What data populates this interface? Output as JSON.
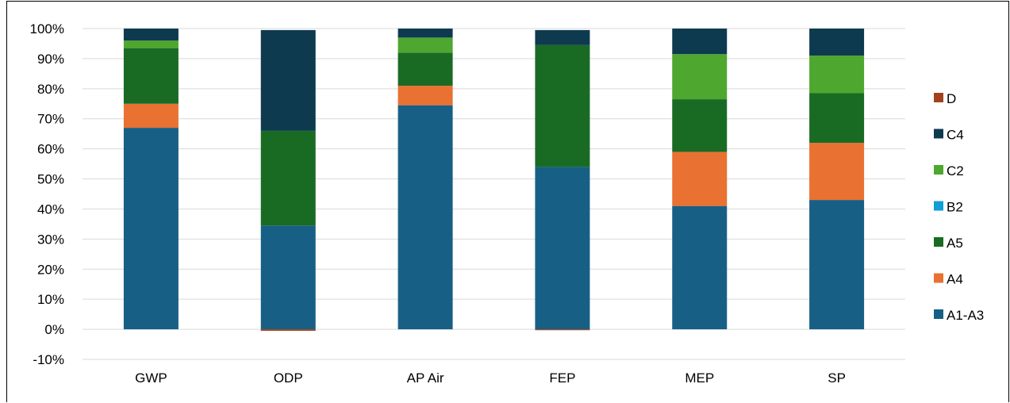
{
  "chart_data": {
    "type": "bar",
    "stacked": true,
    "title": "",
    "xlabel": "",
    "ylabel": "",
    "ylim": [
      -0.1,
      1.0
    ],
    "yticks": [
      "-10%",
      "0%",
      "10%",
      "20%",
      "30%",
      "40%",
      "50%",
      "60%",
      "70%",
      "80%",
      "90%",
      "100%"
    ],
    "grid": true,
    "legend_position": "right",
    "categories": [
      "GWP",
      "ODP",
      "AP Air",
      "FEP",
      "MEP",
      "SP"
    ],
    "series": [
      {
        "name": "A1-A3",
        "color": "#185f85",
        "values": [
          0.67,
          0.345,
          0.745,
          0.54,
          0.41,
          0.43
        ]
      },
      {
        "name": "A4",
        "color": "#e97132",
        "values": [
          0.08,
          0.0,
          0.065,
          0.0,
          0.18,
          0.19
        ]
      },
      {
        "name": "A5",
        "color": "#196b24",
        "values": [
          0.185,
          0.315,
          0.11,
          0.405,
          0.175,
          0.165
        ]
      },
      {
        "name": "B2",
        "color": "#0f9ed5",
        "values": [
          0.0,
          0.0,
          0.0,
          0.0,
          0.0,
          0.0
        ]
      },
      {
        "name": "C2",
        "color": "#4ea72e",
        "values": [
          0.025,
          0.0,
          0.05,
          0.0,
          0.15,
          0.125
        ]
      },
      {
        "name": "C4",
        "color": "#0e3a4f",
        "values": [
          0.04,
          0.335,
          0.03,
          0.05,
          0.085,
          0.09
        ]
      },
      {
        "name": "D",
        "color": "#a0431c",
        "values": [
          0.0,
          -0.005,
          0.0,
          -0.003,
          0.0,
          0.0
        ]
      }
    ],
    "legend_order": [
      "D",
      "C4",
      "C2",
      "B2",
      "A5",
      "A4",
      "A1-A3"
    ]
  }
}
